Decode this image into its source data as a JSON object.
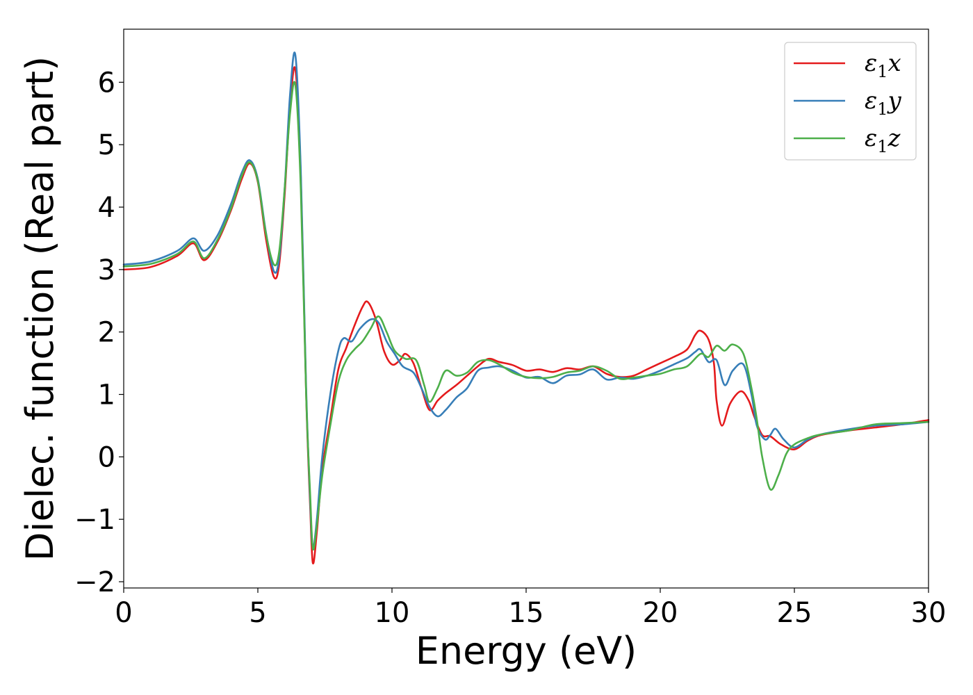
{
  "chart_data": {
    "type": "line",
    "xlabel": "Energy (eV)",
    "ylabel": "Dielec. function (Real part)",
    "xlim": [
      0,
      30
    ],
    "ylim": [
      -2.1,
      6.85
    ],
    "xticks": [
      0,
      5,
      10,
      15,
      20,
      25,
      30
    ],
    "xtick_labels": [
      "0",
      "5",
      "10",
      "15",
      "20",
      "25",
      "30"
    ],
    "yticks": [
      -2,
      -1,
      0,
      1,
      2,
      3,
      4,
      5,
      6
    ],
    "ytick_labels": [
      "−2",
      "−1",
      "0",
      "1",
      "2",
      "3",
      "4",
      "5",
      "6"
    ],
    "grid": false,
    "legend_position": "top-right",
    "series": [
      {
        "name": "ε₁x",
        "legend_base": "ε",
        "legend_sub": "1",
        "legend_var": "x",
        "color": "#e41a1c",
        "points": [
          [
            0,
            3.0
          ],
          [
            1,
            3.04
          ],
          [
            2,
            3.22
          ],
          [
            2.6,
            3.42
          ],
          [
            3.0,
            3.15
          ],
          [
            3.5,
            3.45
          ],
          [
            4.0,
            3.95
          ],
          [
            4.4,
            4.45
          ],
          [
            4.7,
            4.7
          ],
          [
            5.0,
            4.4
          ],
          [
            5.3,
            3.5
          ],
          [
            5.6,
            2.88
          ],
          [
            5.8,
            3.1
          ],
          [
            6.0,
            4.2
          ],
          [
            6.2,
            5.6
          ],
          [
            6.4,
            6.2
          ],
          [
            6.6,
            4.5
          ],
          [
            6.8,
            1.0
          ],
          [
            6.95,
            -0.8
          ],
          [
            7.05,
            -1.7
          ],
          [
            7.2,
            -1.2
          ],
          [
            7.4,
            -0.2
          ],
          [
            7.7,
            0.6
          ],
          [
            8.0,
            1.4
          ],
          [
            8.3,
            1.75
          ],
          [
            8.6,
            2.1
          ],
          [
            8.9,
            2.4
          ],
          [
            9.1,
            2.48
          ],
          [
            9.4,
            2.2
          ],
          [
            9.7,
            1.7
          ],
          [
            10.0,
            1.48
          ],
          [
            10.3,
            1.55
          ],
          [
            10.5,
            1.65
          ],
          [
            10.8,
            1.5
          ],
          [
            11.1,
            1.1
          ],
          [
            11.4,
            0.75
          ],
          [
            11.7,
            0.9
          ],
          [
            12.0,
            1.02
          ],
          [
            12.4,
            1.15
          ],
          [
            12.8,
            1.3
          ],
          [
            13.2,
            1.45
          ],
          [
            13.6,
            1.57
          ],
          [
            14.0,
            1.52
          ],
          [
            14.5,
            1.47
          ],
          [
            15.0,
            1.38
          ],
          [
            15.5,
            1.4
          ],
          [
            16.0,
            1.36
          ],
          [
            16.5,
            1.42
          ],
          [
            17.0,
            1.4
          ],
          [
            17.5,
            1.45
          ],
          [
            18.0,
            1.33
          ],
          [
            18.5,
            1.28
          ],
          [
            19.0,
            1.3
          ],
          [
            19.5,
            1.4
          ],
          [
            20.0,
            1.5
          ],
          [
            20.5,
            1.6
          ],
          [
            21.0,
            1.72
          ],
          [
            21.3,
            1.95
          ],
          [
            21.5,
            2.02
          ],
          [
            21.8,
            1.88
          ],
          [
            22.0,
            1.5
          ],
          [
            22.1,
            0.9
          ],
          [
            22.3,
            0.5
          ],
          [
            22.6,
            0.85
          ],
          [
            23.0,
            1.05
          ],
          [
            23.3,
            0.9
          ],
          [
            23.5,
            0.65
          ],
          [
            23.8,
            0.35
          ],
          [
            24.1,
            0.33
          ],
          [
            24.5,
            0.2
          ],
          [
            25.0,
            0.12
          ],
          [
            25.5,
            0.26
          ],
          [
            26.0,
            0.35
          ],
          [
            27.0,
            0.42
          ],
          [
            28.0,
            0.47
          ],
          [
            29.0,
            0.52
          ],
          [
            30.0,
            0.59
          ]
        ]
      },
      {
        "name": "ε₁y",
        "legend_base": "ε",
        "legend_sub": "1",
        "legend_var": "y",
        "color": "#377eb8",
        "points": [
          [
            0,
            3.08
          ],
          [
            1,
            3.13
          ],
          [
            2,
            3.3
          ],
          [
            2.6,
            3.5
          ],
          [
            3.0,
            3.3
          ],
          [
            3.5,
            3.55
          ],
          [
            4.0,
            4.05
          ],
          [
            4.4,
            4.55
          ],
          [
            4.7,
            4.75
          ],
          [
            5.0,
            4.45
          ],
          [
            5.3,
            3.6
          ],
          [
            5.6,
            2.97
          ],
          [
            5.8,
            3.2
          ],
          [
            6.0,
            4.3
          ],
          [
            6.2,
            5.8
          ],
          [
            6.4,
            6.43
          ],
          [
            6.6,
            4.6
          ],
          [
            6.8,
            1.1
          ],
          [
            6.95,
            -0.7
          ],
          [
            7.05,
            -1.45
          ],
          [
            7.2,
            -1.0
          ],
          [
            7.4,
            0.0
          ],
          [
            7.7,
            1.0
          ],
          [
            8.0,
            1.7
          ],
          [
            8.2,
            1.9
          ],
          [
            8.5,
            1.85
          ],
          [
            8.8,
            2.05
          ],
          [
            9.2,
            2.2
          ],
          [
            9.5,
            2.15
          ],
          [
            9.8,
            1.85
          ],
          [
            10.1,
            1.65
          ],
          [
            10.4,
            1.45
          ],
          [
            10.8,
            1.35
          ],
          [
            11.1,
            1.1
          ],
          [
            11.4,
            0.8
          ],
          [
            11.7,
            0.65
          ],
          [
            12.0,
            0.75
          ],
          [
            12.4,
            0.95
          ],
          [
            12.8,
            1.1
          ],
          [
            13.2,
            1.38
          ],
          [
            13.6,
            1.43
          ],
          [
            14.0,
            1.45
          ],
          [
            14.5,
            1.38
          ],
          [
            15.0,
            1.27
          ],
          [
            15.5,
            1.28
          ],
          [
            16.0,
            1.18
          ],
          [
            16.5,
            1.3
          ],
          [
            17.0,
            1.32
          ],
          [
            17.5,
            1.4
          ],
          [
            18.0,
            1.24
          ],
          [
            18.5,
            1.27
          ],
          [
            19.0,
            1.25
          ],
          [
            19.5,
            1.3
          ],
          [
            20.0,
            1.38
          ],
          [
            20.5,
            1.48
          ],
          [
            21.0,
            1.58
          ],
          [
            21.3,
            1.68
          ],
          [
            21.5,
            1.72
          ],
          [
            21.8,
            1.52
          ],
          [
            22.1,
            1.55
          ],
          [
            22.4,
            1.15
          ],
          [
            22.7,
            1.38
          ],
          [
            23.1,
            1.48
          ],
          [
            23.4,
            1.0
          ],
          [
            23.6,
            0.5
          ],
          [
            23.9,
            0.28
          ],
          [
            24.1,
            0.35
          ],
          [
            24.3,
            0.45
          ],
          [
            24.6,
            0.28
          ],
          [
            25.0,
            0.15
          ],
          [
            25.5,
            0.28
          ],
          [
            26.0,
            0.36
          ],
          [
            27.0,
            0.44
          ],
          [
            28.0,
            0.5
          ],
          [
            29.0,
            0.52
          ],
          [
            30.0,
            0.56
          ]
        ]
      },
      {
        "name": "ε₁z",
        "legend_base": "ε",
        "legend_sub": "1",
        "legend_var": "z",
        "color": "#4daf4a",
        "points": [
          [
            0,
            3.05
          ],
          [
            1,
            3.09
          ],
          [
            2,
            3.25
          ],
          [
            2.6,
            3.45
          ],
          [
            3.0,
            3.18
          ],
          [
            3.5,
            3.48
          ],
          [
            4.0,
            3.98
          ],
          [
            4.4,
            4.5
          ],
          [
            4.7,
            4.72
          ],
          [
            5.0,
            4.42
          ],
          [
            5.3,
            3.58
          ],
          [
            5.6,
            3.08
          ],
          [
            5.8,
            3.3
          ],
          [
            6.0,
            4.3
          ],
          [
            6.2,
            5.5
          ],
          [
            6.4,
            5.95
          ],
          [
            6.6,
            4.3
          ],
          [
            6.8,
            1.0
          ],
          [
            6.95,
            -0.6
          ],
          [
            7.05,
            -1.47
          ],
          [
            7.2,
            -1.1
          ],
          [
            7.4,
            -0.3
          ],
          [
            7.7,
            0.5
          ],
          [
            8.0,
            1.2
          ],
          [
            8.3,
            1.55
          ],
          [
            8.6,
            1.72
          ],
          [
            8.9,
            1.85
          ],
          [
            9.2,
            2.05
          ],
          [
            9.5,
            2.25
          ],
          [
            9.8,
            2.0
          ],
          [
            10.1,
            1.7
          ],
          [
            10.5,
            1.57
          ],
          [
            10.9,
            1.55
          ],
          [
            11.2,
            1.15
          ],
          [
            11.4,
            0.88
          ],
          [
            11.7,
            1.1
          ],
          [
            12.0,
            1.38
          ],
          [
            12.4,
            1.3
          ],
          [
            12.8,
            1.35
          ],
          [
            13.2,
            1.52
          ],
          [
            13.6,
            1.55
          ],
          [
            14.0,
            1.48
          ],
          [
            14.5,
            1.35
          ],
          [
            15.0,
            1.28
          ],
          [
            15.5,
            1.26
          ],
          [
            16.0,
            1.28
          ],
          [
            16.5,
            1.35
          ],
          [
            17.0,
            1.38
          ],
          [
            17.5,
            1.45
          ],
          [
            18.0,
            1.38
          ],
          [
            18.5,
            1.25
          ],
          [
            19.0,
            1.27
          ],
          [
            19.5,
            1.3
          ],
          [
            20.0,
            1.33
          ],
          [
            20.5,
            1.4
          ],
          [
            21.0,
            1.45
          ],
          [
            21.5,
            1.65
          ],
          [
            21.8,
            1.6
          ],
          [
            22.1,
            1.78
          ],
          [
            22.4,
            1.7
          ],
          [
            22.7,
            1.8
          ],
          [
            23.1,
            1.65
          ],
          [
            23.4,
            1.1
          ],
          [
            23.6,
            0.6
          ],
          [
            23.8,
            0.0
          ],
          [
            24.1,
            -0.52
          ],
          [
            24.4,
            -0.3
          ],
          [
            24.7,
            0.05
          ],
          [
            25.0,
            0.2
          ],
          [
            25.5,
            0.3
          ],
          [
            26.0,
            0.36
          ],
          [
            27.0,
            0.42
          ],
          [
            28.0,
            0.52
          ],
          [
            29.0,
            0.54
          ],
          [
            30.0,
            0.56
          ]
        ]
      }
    ]
  }
}
